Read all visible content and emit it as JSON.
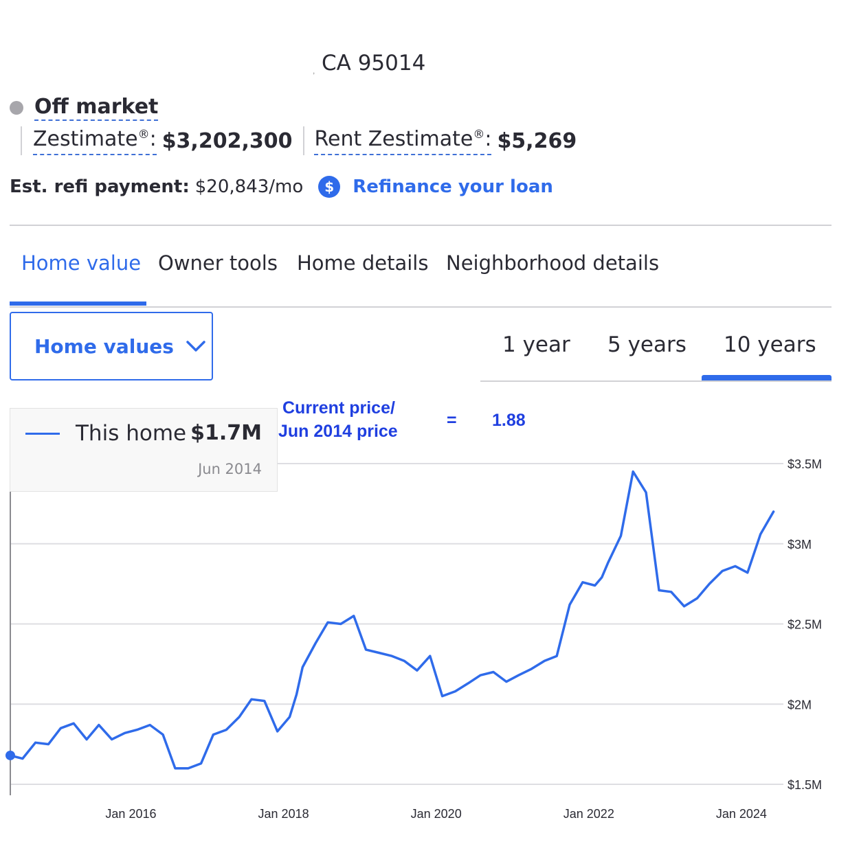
{
  "address": {
    "line": "CA 95014"
  },
  "status": {
    "label": "Off market"
  },
  "zestimate": {
    "label": "Zestimate",
    "mark": "®",
    "colon": ":",
    "value": "$3,202,300"
  },
  "rent_zestimate": {
    "label": "Rent Zestimate",
    "mark": "®",
    "colon": ":",
    "value": "$5,269"
  },
  "refi": {
    "label": "Est. refi payment:",
    "value": "$20,843/mo",
    "icon_glyph": "$",
    "link": "Refinance your loan"
  },
  "tabs": [
    {
      "label": "Home value",
      "active": true
    },
    {
      "label": "Owner tools",
      "active": false
    },
    {
      "label": "Home details",
      "active": false
    },
    {
      "label": "Neighborhood details",
      "active": false
    }
  ],
  "dropdown": {
    "label": "Home values"
  },
  "ranges": [
    {
      "label": "1 year",
      "active": false
    },
    {
      "label": "5 years",
      "active": false
    },
    {
      "label": "10 years",
      "active": true
    }
  ],
  "annotation": {
    "line1": "Current price/",
    "line2": "Jun 2014 price",
    "equals": "=",
    "ratio": "1.88"
  },
  "tooltip": {
    "label": "This home",
    "value": "$1.7M",
    "date": "Jun 2014"
  },
  "colors": {
    "accent": "#2f6bea",
    "annotation": "#1f3fe0",
    "status_dot": "#a7a6ab"
  },
  "chart_data": {
    "type": "line",
    "series": [
      {
        "name": "This home",
        "x": [
          2014.42,
          2014.58,
          2014.75,
          2014.92,
          2015.08,
          2015.25,
          2015.42,
          2015.58,
          2015.75,
          2015.92,
          2016.08,
          2016.25,
          2016.42,
          2016.58,
          2016.75,
          2016.92,
          2017.08,
          2017.25,
          2017.42,
          2017.58,
          2017.75,
          2017.92,
          2018.08,
          2018.17,
          2018.25,
          2018.42,
          2018.58,
          2018.75,
          2018.92,
          2019.08,
          2019.25,
          2019.42,
          2019.58,
          2019.75,
          2019.92,
          2020.08,
          2020.25,
          2020.42,
          2020.58,
          2020.75,
          2020.92,
          2021.08,
          2021.25,
          2021.42,
          2021.58,
          2021.75,
          2021.92,
          2022.08,
          2022.17,
          2022.25,
          2022.42,
          2022.58,
          2022.75,
          2022.92,
          2023.08,
          2023.25,
          2023.42,
          2023.58,
          2023.75,
          2023.92,
          2024.08,
          2024.25,
          2024.42
        ],
        "values": [
          1.68,
          1.66,
          1.76,
          1.75,
          1.85,
          1.88,
          1.78,
          1.87,
          1.78,
          1.82,
          1.84,
          1.87,
          1.81,
          1.6,
          1.6,
          1.63,
          1.81,
          1.84,
          1.92,
          2.03,
          2.02,
          1.83,
          1.92,
          2.06,
          2.23,
          2.38,
          2.51,
          2.5,
          2.55,
          2.34,
          2.32,
          2.3,
          2.27,
          2.21,
          2.3,
          2.05,
          2.08,
          2.13,
          2.18,
          2.2,
          2.14,
          2.18,
          2.22,
          2.27,
          2.3,
          2.62,
          2.76,
          2.74,
          2.79,
          2.88,
          3.05,
          3.45,
          3.32,
          2.71,
          2.7,
          2.61,
          2.66,
          2.75,
          2.83,
          2.86,
          2.82,
          3.06,
          3.2
        ]
      }
    ],
    "x_ticks": [
      2016,
      2018,
      2020,
      2022,
      2024
    ],
    "x_tick_labels": [
      "Jan 2016",
      "Jan 2018",
      "Jan 2020",
      "Jan 2022",
      "Jan 2024"
    ],
    "y_ticks": [
      1.5,
      2,
      2.5,
      3,
      3.5
    ],
    "y_tick_labels": [
      "$1.5M",
      "$2M",
      "$2.5M",
      "$3M",
      "$3.5M"
    ],
    "xlim": [
      2014.42,
      2024.55
    ],
    "ylim": [
      1.5,
      3.5
    ],
    "grid": true
  }
}
